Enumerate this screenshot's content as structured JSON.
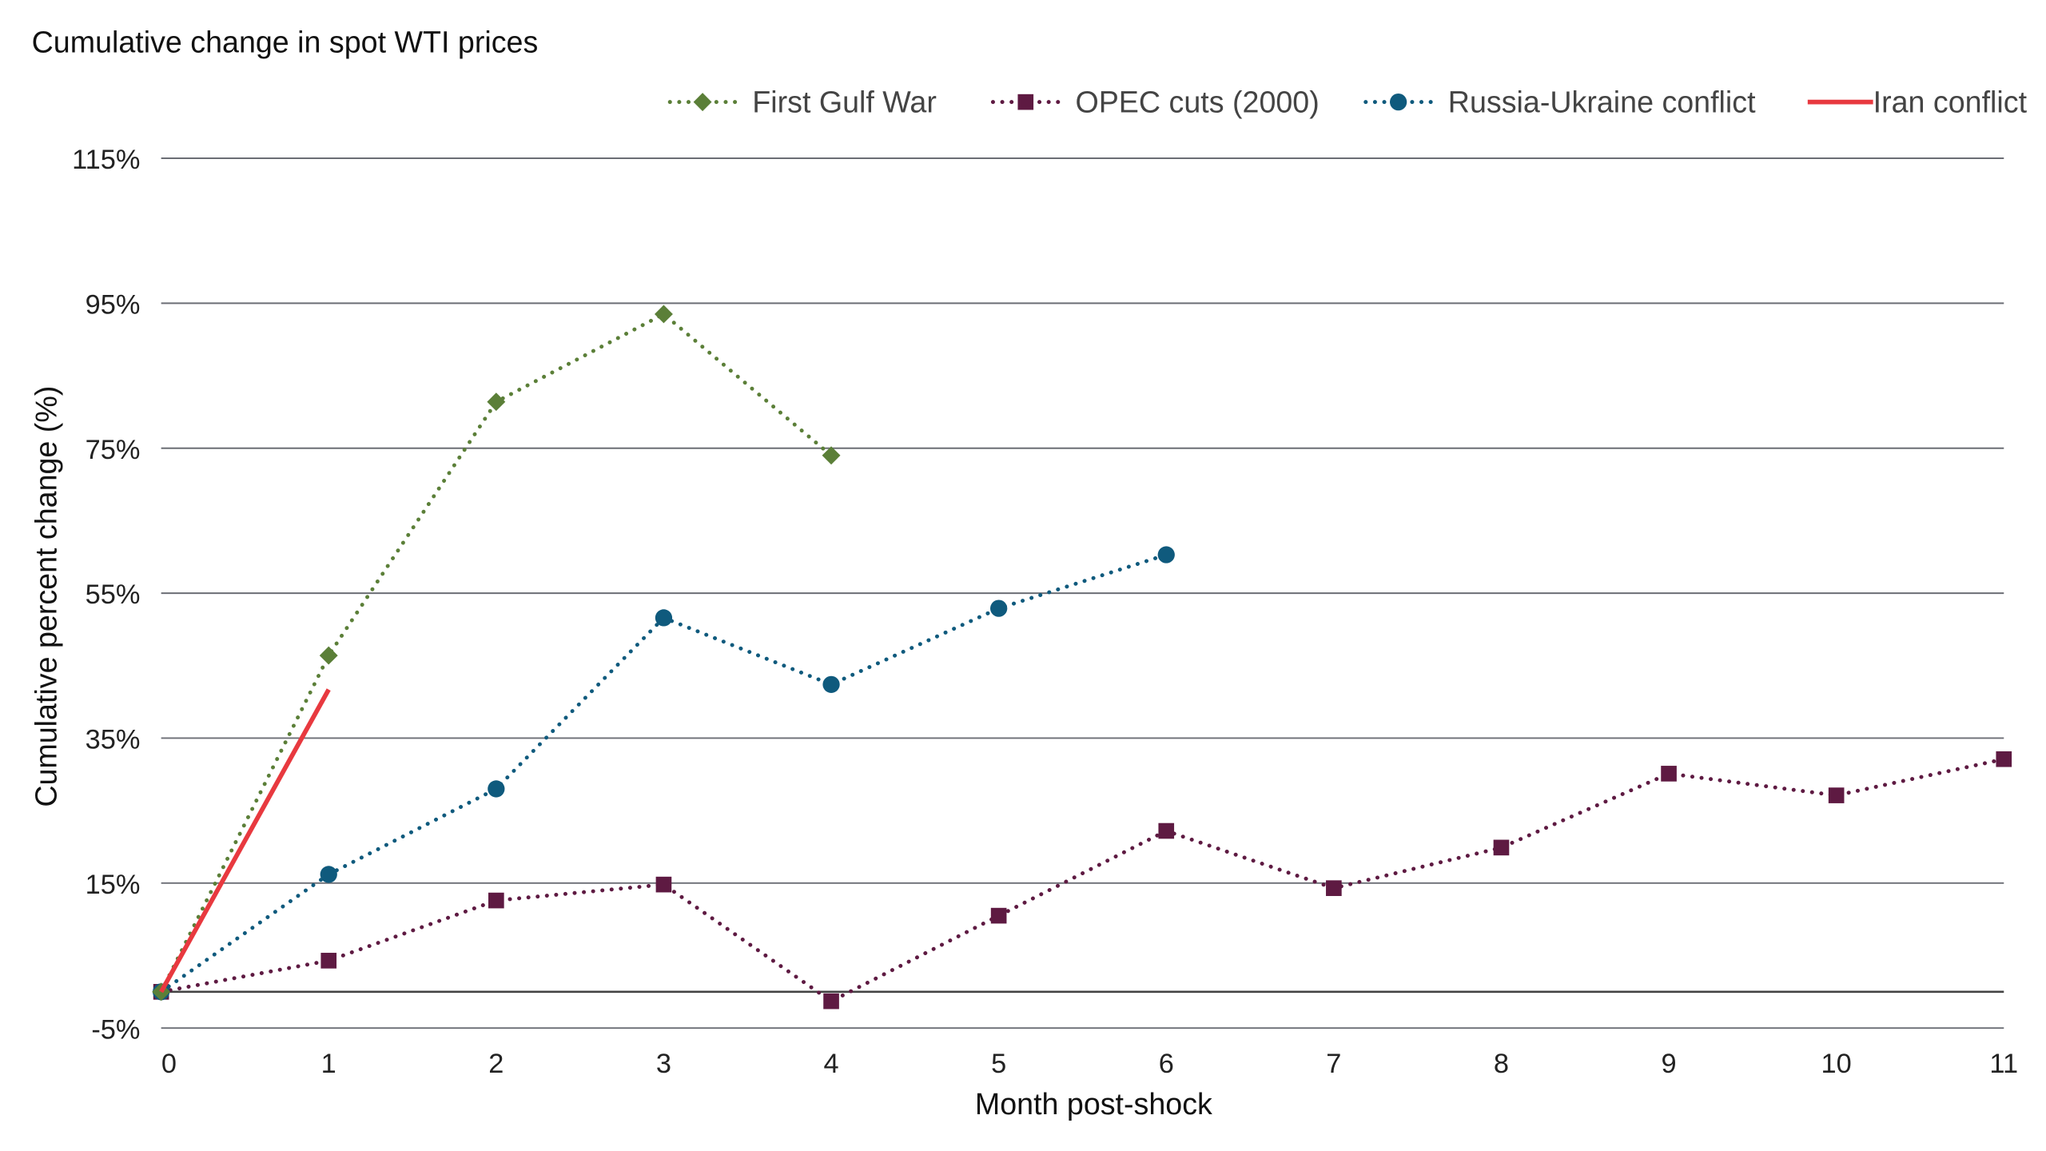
{
  "chart_data": {
    "type": "line",
    "title": "Cumulative change in spot WTI prices",
    "xlabel": "Month post-shock",
    "ylabel": "Cumulative percent change (%)",
    "ylim": [
      -5,
      115
    ],
    "xlim": [
      0,
      11
    ],
    "yticks": [
      "-5%",
      "15%",
      "35%",
      "55%",
      "75%",
      "95%",
      "115%"
    ],
    "ytick_values": [
      -5,
      15,
      35,
      55,
      75,
      95,
      115
    ],
    "xticks": [
      "0",
      "1",
      "2",
      "3",
      "4",
      "5",
      "6",
      "7",
      "8",
      "9",
      "10",
      "11"
    ],
    "grid": "horizontal",
    "legend_position": "top-right",
    "series": [
      {
        "name": "First Gulf War",
        "color": "#5b7f38",
        "style": "dotted",
        "marker": "diamond",
        "x": [
          0,
          1,
          2,
          3,
          4
        ],
        "values": [
          0,
          46.4,
          81.4,
          93.5,
          74.0
        ]
      },
      {
        "name": "OPEC cuts (2000)",
        "color": "#5e1a42",
        "style": "dotted",
        "marker": "square",
        "x": [
          0,
          1,
          2,
          3,
          4,
          5,
          6,
          7,
          8,
          9,
          10,
          11
        ],
        "values": [
          0,
          4.3,
          12.6,
          14.8,
          -1.3,
          10.5,
          22.2,
          14.3,
          19.9,
          30.1,
          27.1,
          32.1
        ]
      },
      {
        "name": "Russia-Ukraine conflict",
        "color": "#0f5a7d",
        "style": "dotted",
        "marker": "circle",
        "x": [
          0,
          1,
          2,
          3,
          4,
          5,
          6
        ],
        "values": [
          0,
          16.2,
          28.0,
          51.6,
          42.4,
          52.9,
          60.3
        ]
      },
      {
        "name": "Iran conflict",
        "color": "#e8393f",
        "style": "solid",
        "marker": "none",
        "x": [
          0,
          1
        ],
        "values": [
          0,
          41.7
        ]
      }
    ]
  }
}
